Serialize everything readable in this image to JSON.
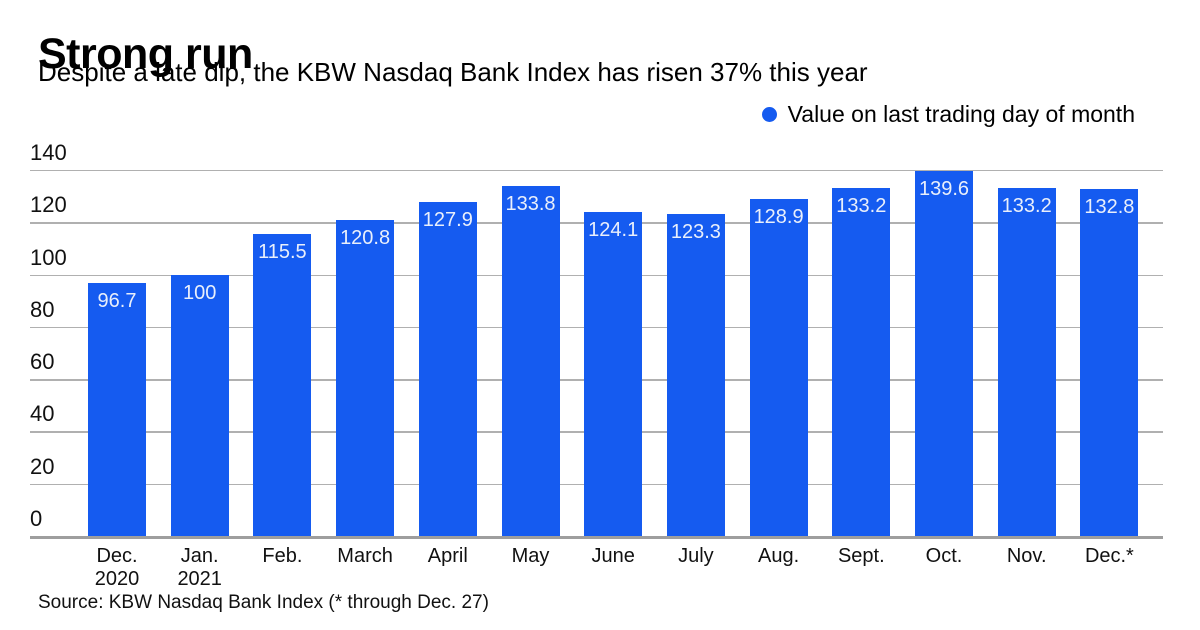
{
  "title": "Strong run",
  "subtitle": "Despite a late dip, the KBW Nasdaq Bank Index has risen 37% this year",
  "legend": {
    "label": "Value on last trading day of month",
    "marker_color": "#155bf0"
  },
  "source": "Source: KBW Nasdaq Bank Index (* through Dec. 27)",
  "colors": {
    "bar": "#155bf0",
    "value_label": "#e9effb",
    "gridline": "#b0b0b0",
    "axis_line": "#9e9e9e",
    "text": "#000000"
  },
  "chart_data": {
    "type": "bar",
    "title": "Strong run",
    "subtitle": "Despite a late dip, the KBW Nasdaq Bank Index has risen 37% this year",
    "legend": [
      "Value on last trading day of month"
    ],
    "legend_position": "top-right",
    "categories": [
      "Dec.\n2020",
      "Jan.\n2021",
      "Feb.",
      "March",
      "April",
      "May",
      "June",
      "July",
      "Aug.",
      "Sept.",
      "Oct.",
      "Nov.",
      "Dec.*"
    ],
    "values": [
      96.7,
      100,
      115.5,
      120.8,
      127.9,
      133.8,
      124.1,
      123.3,
      128.9,
      133.2,
      139.6,
      133.2,
      132.8
    ],
    "bar_labels": [
      "96.7",
      "100",
      "115.5",
      "120.8",
      "127.9",
      "133.8",
      "124.1",
      "123.3",
      "128.9",
      "133.2",
      "139.6",
      "133.2",
      "132.8"
    ],
    "xlabel": "",
    "ylabel": "",
    "yticks": [
      0,
      20,
      40,
      60,
      80,
      100,
      120,
      140
    ],
    "ylim": [
      0,
      140
    ],
    "grid": true,
    "bar_color": "#155bf0",
    "note": "* through Dec. 27"
  }
}
